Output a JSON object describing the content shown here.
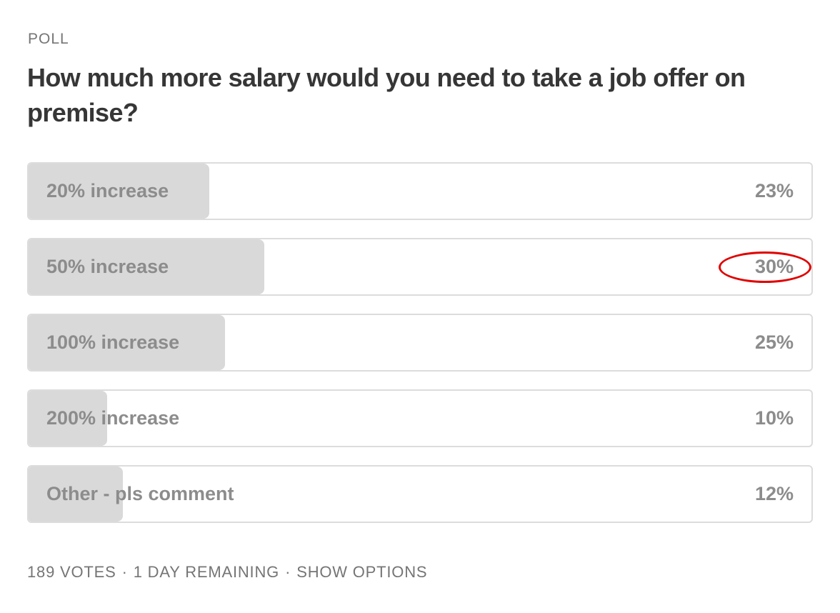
{
  "poll": {
    "label": "POLL",
    "question": "How much more salary would you need to take a job offer on premise?",
    "options": [
      {
        "label": "20% increase",
        "percent_text": "23%",
        "fill_fraction": 0.23
      },
      {
        "label": "50% increase",
        "percent_text": "30%",
        "fill_fraction": 0.3
      },
      {
        "label": "100% increase",
        "percent_text": "25%",
        "fill_fraction": 0.25
      },
      {
        "label": "200% increase",
        "percent_text": "10%",
        "fill_fraction": 0.1
      },
      {
        "label": "Other - pls comment",
        "percent_text": "12%",
        "fill_fraction": 0.12
      }
    ],
    "footer": {
      "votes": "189 VOTES",
      "remaining": "1 DAY REMAINING",
      "show_options": "SHOW OPTIONS",
      "separator": "·"
    }
  },
  "annotation": {
    "highlighted_option": 1,
    "color": "#e00000"
  },
  "colors": {
    "fill": "#d9d9d9",
    "border": "#dcdcdc",
    "option_text": "#8c8c8c",
    "meta_text": "#757575",
    "title_text": "#363636"
  }
}
